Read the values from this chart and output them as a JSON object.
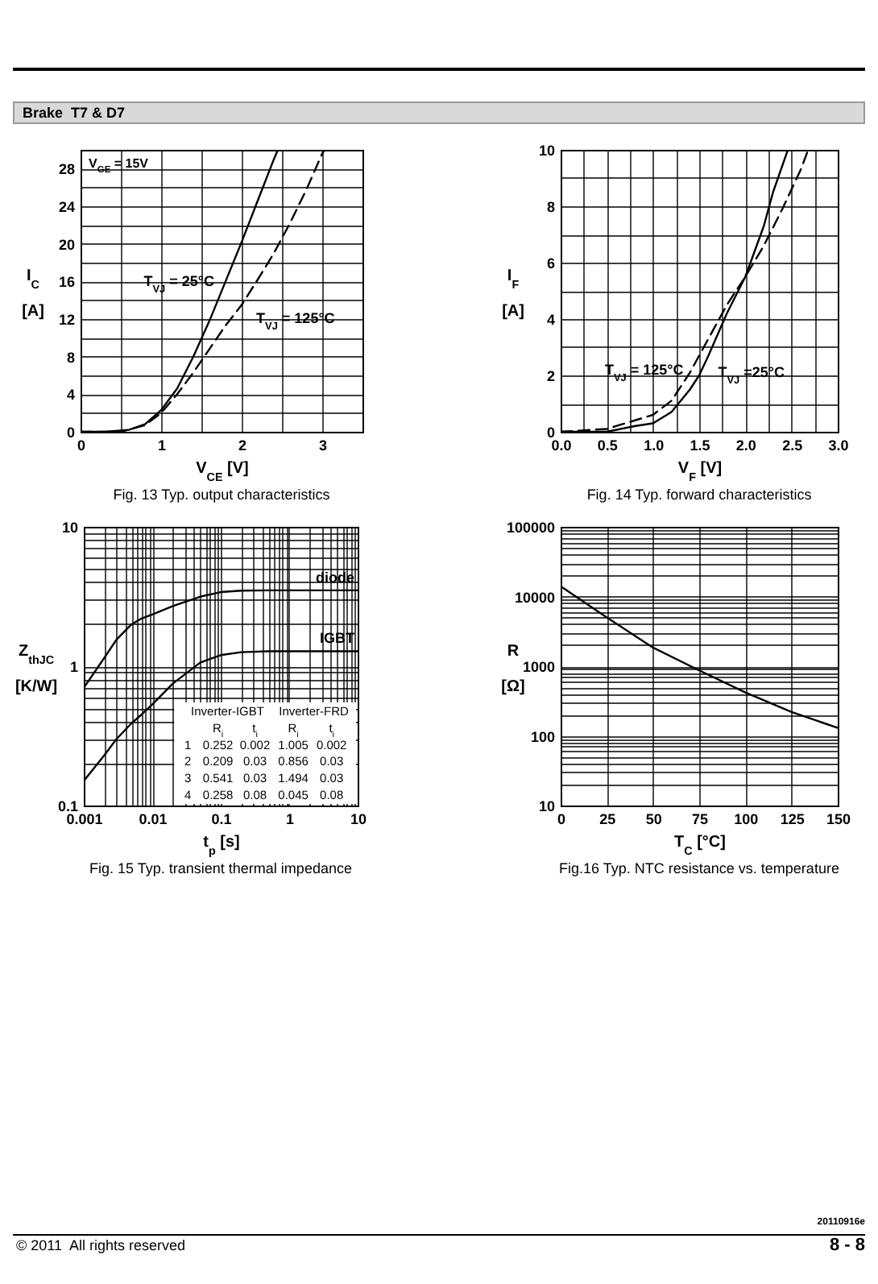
{
  "chart_data": [
    {
      "type": "other",
      "title": "Brake  T7 & D7",
      "annotations": [
        "20110916e",
        "© 2011  All rights reserved",
        "8 - 8"
      ]
    },
    {
      "type": "line",
      "title": "Fig. 13 Typ. output characteristics",
      "xlabel": "V$_{CE}$  [V]",
      "ylabel": "I$_{C}$ [A]",
      "grid": true,
      "xlim": [
        0,
        3.5
      ],
      "ylim": [
        0,
        30
      ],
      "xticks": [
        0,
        {
          "value": 0.5,
          "label": null
        },
        1,
        {
          "value": 1.5,
          "label": null
        },
        2,
        {
          "value": 2.5,
          "label": null
        },
        3,
        {
          "value": 3.5,
          "label": null
        }
      ],
      "yticks": [
        0,
        {
          "value": 2,
          "label": null
        },
        4,
        {
          "value": 6,
          "label": null
        },
        8,
        {
          "value": 10,
          "label": null
        },
        12,
        {
          "value": 14,
          "label": null
        },
        16,
        {
          "value": 18,
          "label": null
        },
        20,
        {
          "value": 22,
          "label": null
        },
        24,
        {
          "value": 26,
          "label": null
        },
        28
      ],
      "annotations": [
        "V$_{GE}$ = 15V"
      ],
      "series": [
        {
          "name": "T$_{VJ}$ = 25°C",
          "color": "#000000",
          "line_style": "solid",
          "x": [
            0,
            0.3,
            0.6,
            0.8,
            1,
            1.2,
            1.4,
            1.6,
            1.8,
            2,
            2.2,
            2.4,
            2.45
          ],
          "values": [
            0,
            0,
            0.2,
            0.8,
            2.3,
            4.6,
            8,
            11.8,
            16,
            20.2,
            24.6,
            29,
            30
          ]
        },
        {
          "name": "T$_{VJ}$ = 125°C",
          "color": "#000000",
          "line_style": "dashed",
          "x": [
            0,
            0.5,
            0.8,
            1,
            1.2,
            1.4,
            1.6,
            1.8,
            2,
            2.2,
            2.4,
            2.6,
            2.8,
            3,
            3.03
          ],
          "values": [
            0,
            0,
            0.7,
            2,
            4,
            6.3,
            8.8,
            11.3,
            13.5,
            16.2,
            19,
            22.2,
            25.7,
            29.6,
            30
          ]
        }
      ]
    },
    {
      "type": "line",
      "title": "Fig. 14 Typ. forward characteristics",
      "xlabel": "V$_{F}$  [V]",
      "ylabel": "I$_{F}$ [A]",
      "grid": true,
      "xlim": [
        0,
        3
      ],
      "ylim": [
        0,
        10
      ],
      "xticks": [
        {
          "value": 0,
          "label": "0.0"
        },
        {
          "value": 0.25,
          "label": null
        },
        0.5,
        {
          "value": 0.75,
          "label": null
        },
        {
          "value": 1,
          "label": "1.0"
        },
        {
          "value": 1.25,
          "label": null
        },
        1.5,
        {
          "value": 1.75,
          "label": null
        },
        {
          "value": 2,
          "label": "2.0"
        },
        {
          "value": 2.25,
          "label": null
        },
        2.5,
        {
          "value": 2.75,
          "label": null
        },
        {
          "value": 3,
          "label": "3.0"
        }
      ],
      "yticks": [
        0,
        {
          "value": 1,
          "label": null
        },
        2,
        {
          "value": 3,
          "label": null
        },
        4,
        {
          "value": 5,
          "label": null
        },
        6,
        {
          "value": 7,
          "label": null
        },
        8,
        {
          "value": 9,
          "label": null
        },
        10
      ],
      "series": [
        {
          "name": "T$_{VJ}$ =25°C",
          "color": "#000000",
          "line_style": "solid",
          "x": [
            0,
            0.5,
            0.8,
            1,
            1.2,
            1.4,
            1.5,
            1.6,
            1.8,
            2,
            2.2,
            2.3,
            2.46
          ],
          "values": [
            0,
            0,
            0.2,
            0.3,
            0.7,
            1.5,
            2,
            2.7,
            4.2,
            5.5,
            7.3,
            8.5,
            10
          ]
        },
        {
          "name": "T$_{VJ}$ = 125°C",
          "color": "#000000",
          "line_style": "dashed",
          "x": [
            0,
            0.5,
            0.8,
            1,
            1.2,
            1.4,
            1.6,
            1.8,
            2,
            2.2,
            2.4,
            2.6,
            2.68
          ],
          "values": [
            0,
            0.1,
            0.4,
            0.6,
            1.1,
            2.1,
            3.3,
            4.5,
            5.5,
            6.6,
            7.9,
            9.3,
            10
          ]
        }
      ]
    },
    {
      "type": "line",
      "title": "Fig. 15  Typ. transient thermal impedance",
      "xlabel": "t$_{p}$  [s]",
      "ylabel": "Z$_{thJC}$ [K/W]",
      "grid": true,
      "log": "xy",
      "xlim": [
        0.001,
        10
      ],
      "ylim": [
        0.1,
        10
      ],
      "xticks": [
        0.001,
        {
          "value": 0.002,
          "label": null
        },
        {
          "value": 0.003,
          "label": null
        },
        {
          "value": 0.004,
          "label": null
        },
        {
          "value": 0.005,
          "label": null
        },
        {
          "value": 0.006,
          "label": null
        },
        {
          "value": 0.007,
          "label": null
        },
        {
          "value": 0.008,
          "label": null
        },
        {
          "value": 0.009,
          "label": null
        },
        0.01,
        {
          "value": 0.02,
          "label": null
        },
        {
          "value": 0.03,
          "label": null
        },
        {
          "value": 0.04,
          "label": null
        },
        {
          "value": 0.05,
          "label": null
        },
        {
          "value": 0.06,
          "label": null
        },
        {
          "value": 0.07,
          "label": null
        },
        {
          "value": 0.08,
          "label": null
        },
        {
          "value": 0.09,
          "label": null
        },
        0.1,
        {
          "value": 0.2,
          "label": null
        },
        {
          "value": 0.3,
          "label": null
        },
        {
          "value": 0.4,
          "label": null
        },
        {
          "value": 0.5,
          "label": null
        },
        {
          "value": 0.6,
          "label": null
        },
        {
          "value": 0.7,
          "label": null
        },
        {
          "value": 0.8,
          "label": null
        },
        {
          "value": 0.9,
          "label": null
        },
        1,
        {
          "value": 2,
          "label": null
        },
        {
          "value": 3,
          "label": null
        },
        {
          "value": 4,
          "label": null
        },
        {
          "value": 5,
          "label": null
        },
        {
          "value": 6,
          "label": null
        },
        {
          "value": 7,
          "label": null
        },
        {
          "value": 8,
          "label": null
        },
        {
          "value": 9,
          "label": null
        },
        10
      ],
      "yticks": [
        0.1,
        {
          "value": 0.2,
          "label": null
        },
        {
          "value": 0.3,
          "label": null
        },
        {
          "value": 0.4,
          "label": null
        },
        {
          "value": 0.5,
          "label": null
        },
        {
          "value": 0.6,
          "label": null
        },
        {
          "value": 0.7,
          "label": null
        },
        {
          "value": 0.8,
          "label": null
        },
        {
          "value": 0.9,
          "label": null
        },
        1,
        {
          "value": 2,
          "label": null
        },
        {
          "value": 3,
          "label": null
        },
        {
          "value": 4,
          "label": null
        },
        {
          "value": 5,
          "label": null
        },
        {
          "value": 6,
          "label": null
        },
        {
          "value": 7,
          "label": null
        },
        {
          "value": 8,
          "label": null
        },
        {
          "value": 9,
          "label": null
        },
        10
      ],
      "annotations": [
        "Inverter-IGBT Inverter-FRD\nR$_{i}$ t$_{i}$ R$_{i}$ t$_{i}$\n1 0.252 0.002 1.005 0.002\n2 0.209 0.03 0.856 0.03\n3 0.541 0.03 1.494 0.03\n4 0.258 0.08 0.045 0.08"
      ],
      "x": [
        0.001,
        0.002,
        0.003,
        0.005,
        0.007,
        0.01,
        0.02,
        0.05,
        0.1,
        0.2,
        0.5,
        1,
        10
      ],
      "series": [
        {
          "name": "diode",
          "color": "#000000",
          "values": [
            0.7,
            1.15,
            1.55,
            2.0,
            2.2,
            2.35,
            2.7,
            3.15,
            3.4,
            3.48,
            3.5,
            3.5,
            3.5
          ]
        },
        {
          "name": "IGBT",
          "color": "#000000",
          "values": [
            0.15,
            0.23,
            0.3,
            0.39,
            0.45,
            0.53,
            0.75,
            1.06,
            1.2,
            1.26,
            1.28,
            1.28,
            1.28
          ]
        }
      ]
    },
    {
      "type": "line",
      "title": "Fig.16    Typ. NTC resistance vs. temperature",
      "xlabel": "T$_{C}$  [°C]",
      "ylabel": "R [Ω]",
      "grid": true,
      "log": "y",
      "xlim": [
        0,
        150
      ],
      "ylim": [
        10,
        100000
      ],
      "xticks": [
        0,
        25,
        50,
        75,
        100,
        125,
        150
      ],
      "yticks": [
        10,
        {
          "value": 20,
          "label": null
        },
        {
          "value": 30,
          "label": null
        },
        {
          "value": 40,
          "label": null
        },
        {
          "value": 50,
          "label": null
        },
        {
          "value": 60,
          "label": null
        },
        {
          "value": 70,
          "label": null
        },
        {
          "value": 80,
          "label": null
        },
        {
          "value": 90,
          "label": null
        },
        100,
        {
          "value": 200,
          "label": null
        },
        {
          "value": 300,
          "label": null
        },
        {
          "value": 400,
          "label": null
        },
        {
          "value": 500,
          "label": null
        },
        {
          "value": 600,
          "label": null
        },
        {
          "value": 700,
          "label": null
        },
        {
          "value": 800,
          "label": null
        },
        {
          "value": 900,
          "label": null
        },
        1000,
        {
          "value": 2000,
          "label": null
        },
        {
          "value": 3000,
          "label": null
        },
        {
          "value": 4000,
          "label": null
        },
        {
          "value": 5000,
          "label": null
        },
        {
          "value": 6000,
          "label": null
        },
        {
          "value": 7000,
          "label": null
        },
        {
          "value": 8000,
          "label": null
        },
        {
          "value": 9000,
          "label": null
        },
        10000,
        {
          "value": 20000,
          "label": null
        },
        {
          "value": 30000,
          "label": null
        },
        {
          "value": 40000,
          "label": null
        },
        {
          "value": 50000,
          "label": null
        },
        {
          "value": 60000,
          "label": null
        },
        {
          "value": 70000,
          "label": null
        },
        {
          "value": 80000,
          "label": null
        },
        {
          "value": 90000,
          "label": null
        },
        100000
      ],
      "x": [
        0,
        25,
        50,
        75,
        100,
        125,
        150
      ],
      "series": [
        {
          "color": "#000000",
          "values": [
            14000,
            5000,
            1850,
            870,
            420,
            220,
            130
          ]
        }
      ]
    }
  ]
}
